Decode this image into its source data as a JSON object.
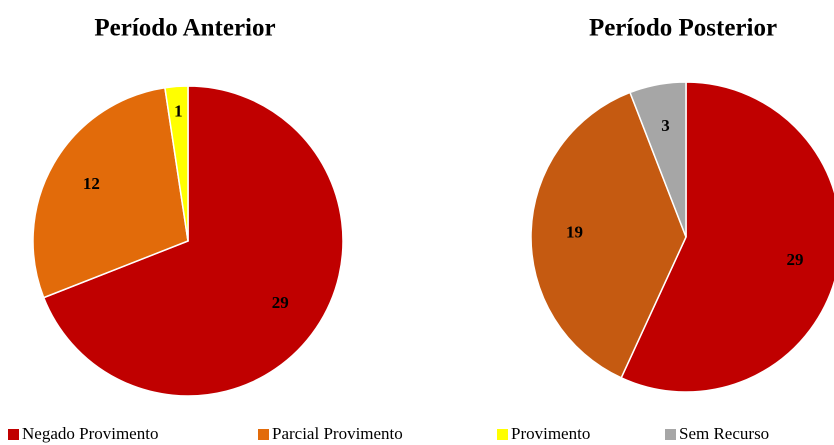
{
  "chart_data": [
    {
      "type": "pie",
      "title": "Período Anterior",
      "categories": [
        "Negado Provimento",
        "Parcial Provimento",
        "Provimento"
      ],
      "values": [
        29,
        12,
        1
      ],
      "colors": [
        "#c00000",
        "#e26b0a",
        "#ffff00"
      ]
    },
    {
      "type": "pie",
      "title": "Período Posterior",
      "categories": [
        "Negado Provimento",
        "Parcial Provimento",
        "Sem Recurso"
      ],
      "values": [
        29,
        19,
        3
      ],
      "colors": [
        "#c00000",
        "#c55a11",
        "#a6a6a6"
      ]
    }
  ]
}
